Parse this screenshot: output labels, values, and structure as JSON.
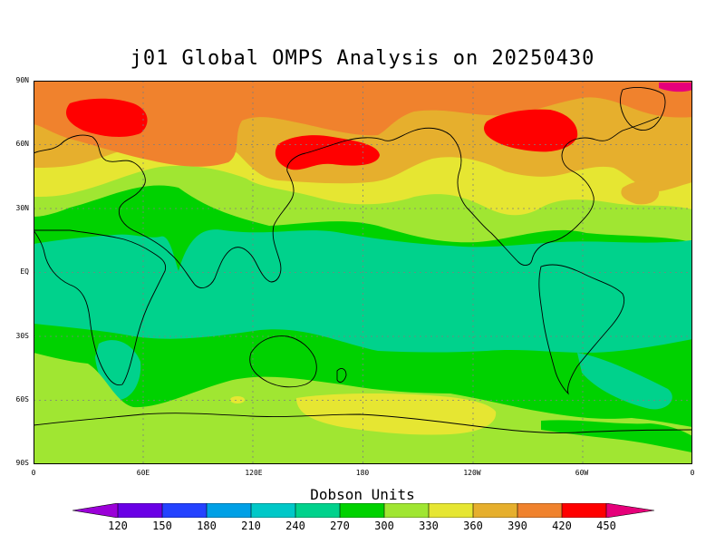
{
  "title": "j01 Global OMPS Analysis on 20250430",
  "axes": {
    "y_labels": [
      "90N",
      "60N",
      "30N",
      "EQ",
      "30S",
      "60S",
      "90S"
    ],
    "x_labels": [
      "0",
      "60E",
      "120E",
      "180",
      "120W",
      "60W",
      "0"
    ]
  },
  "colorbar": {
    "title": "Dobson Units",
    "labels": [
      "120",
      "150",
      "180",
      "210",
      "240",
      "270",
      "300",
      "330",
      "360",
      "390",
      "420",
      "450"
    ],
    "colors": [
      "#9b00d8",
      "#6a00e6",
      "#2442ff",
      "#00a0e6",
      "#00c8c8",
      "#00d28c",
      "#00d200",
      "#a0e632",
      "#e6e632",
      "#e6af2d",
      "#f0822d",
      "#ff0000",
      "#e6007a"
    ]
  },
  "palette": {
    "band_270_300": "#00d28c",
    "band_300_330": "#00d200",
    "band_330_360": "#a0e632",
    "band_360_390": "#e6e632",
    "band_390_420": "#e6af2d",
    "band_420_450": "#f0822d",
    "band_450_plus": "#ff0000",
    "coastline": "#000000",
    "gridline": "#7f7f7f"
  }
}
